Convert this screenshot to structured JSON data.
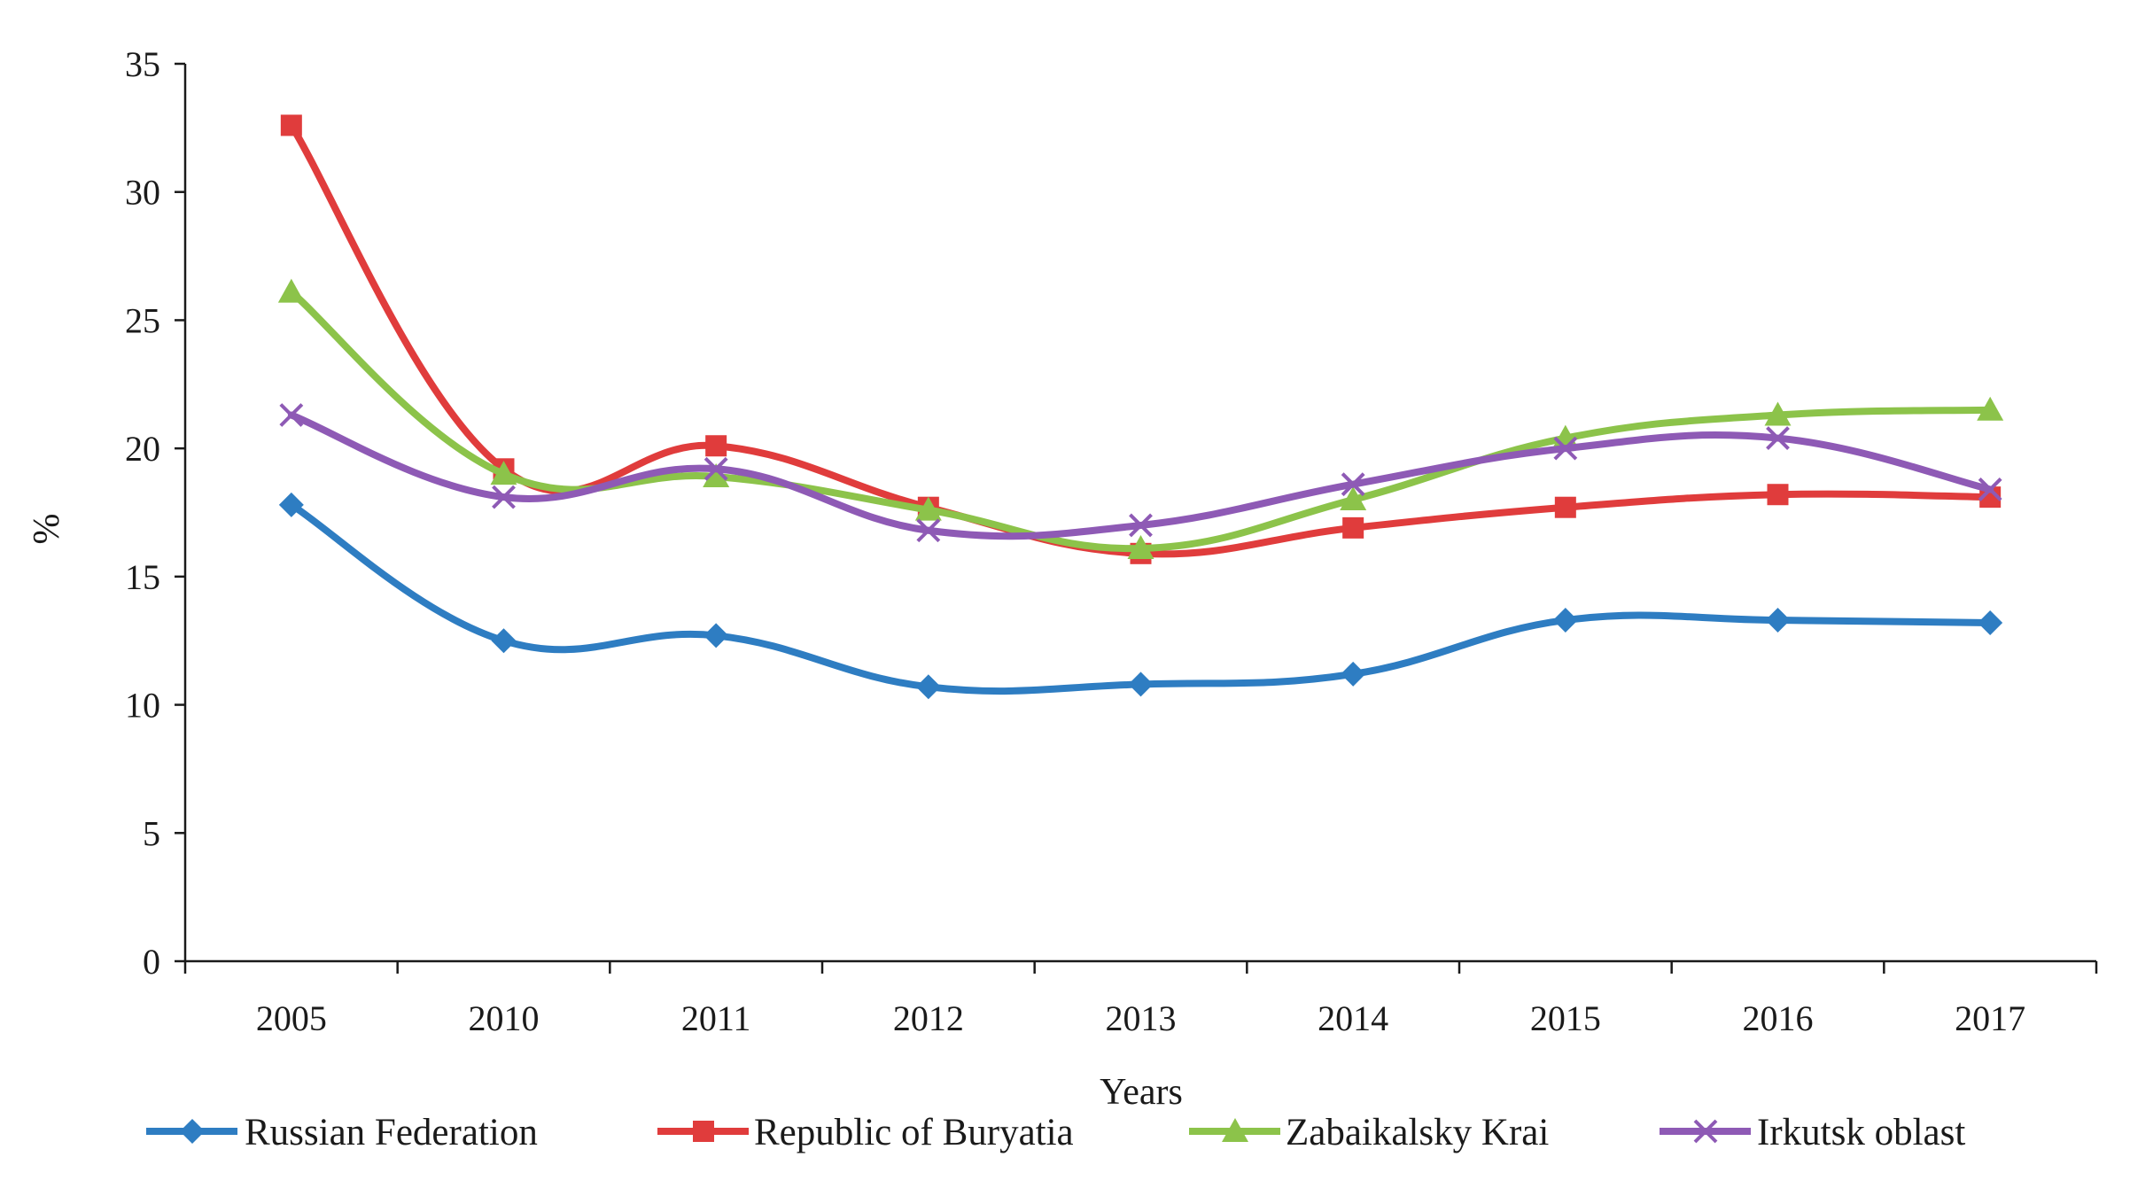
{
  "chart_data": {
    "type": "line",
    "title": "",
    "xlabel": "Years",
    "ylabel": "%",
    "categories": [
      "2005",
      "2010",
      "2011",
      "2012",
      "2013",
      "2014",
      "2015",
      "2016",
      "2017"
    ],
    "ylim": [
      0,
      35
    ],
    "yticks": [
      0,
      5,
      10,
      15,
      20,
      25,
      30,
      35
    ],
    "grid": false,
    "smooth": true,
    "legend_position": "bottom",
    "series": [
      {
        "name": "Russian Federation",
        "color": "#2E7DC2",
        "marker": "diamond",
        "values": [
          17.8,
          12.5,
          12.7,
          10.7,
          10.8,
          11.2,
          13.3,
          13.3,
          13.2
        ]
      },
      {
        "name": "Republic of Buryatia",
        "color": "#E03C3C",
        "marker": "square",
        "values": [
          32.6,
          19.2,
          20.1,
          17.7,
          15.9,
          16.9,
          17.7,
          18.2,
          18.1
        ]
      },
      {
        "name": "Zabaikalsky Krai",
        "color": "#8CC34A",
        "marker": "triangle",
        "values": [
          26.1,
          19.0,
          18.9,
          17.6,
          16.1,
          18.0,
          20.4,
          21.3,
          21.5
        ]
      },
      {
        "name": "Irkutsk oblast",
        "color": "#8E5AB5",
        "marker": "x",
        "values": [
          21.3,
          18.1,
          19.2,
          16.8,
          17.0,
          18.6,
          20.0,
          20.4,
          18.4
        ]
      }
    ]
  }
}
